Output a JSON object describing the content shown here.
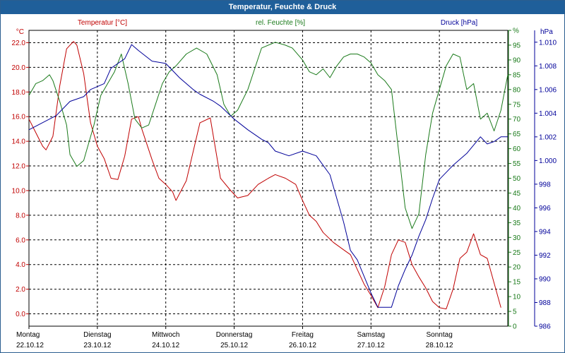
{
  "title": "Temperatur, Feuchte & Druck",
  "colors": {
    "temperature": "#c00000",
    "humidity": "#1a7a1a",
    "pressure": "#000099",
    "grid": "#000000",
    "titlebar": "#1f5f9a"
  },
  "chart_data": {
    "type": "line",
    "title": "Temperatur, Feuchte & Druck",
    "grid": true,
    "x_days": [
      {
        "day": "Montag",
        "date": "22.10.12"
      },
      {
        "day": "Dienstag",
        "date": "23.10.12"
      },
      {
        "day": "Mittwoch",
        "date": "24.10.12"
      },
      {
        "day": "Donnerstag",
        "date": "25.10.12"
      },
      {
        "day": "Freitag",
        "date": "26.10.12"
      },
      {
        "day": "Samstag",
        "date": "27.10.12"
      },
      {
        "day": "Sonntag",
        "date": "28.10.12"
      }
    ],
    "xlim": [
      0,
      7
    ],
    "axes": {
      "temperature": {
        "label": "Temperatur [°C]",
        "unit": "°C",
        "ylim": [
          -1,
          23
        ],
        "ticks": [
          "0.0",
          "2.0",
          "4.0",
          "6.0",
          "8.0",
          "10.0",
          "12.0",
          "14.0",
          "16.0",
          "18.0",
          "20.0",
          "22.0"
        ]
      },
      "humidity": {
        "label": "rel. Feuchte [%]",
        "unit": "%",
        "ylim": [
          0,
          100
        ],
        "ticks": [
          "0",
          "5",
          "10",
          "15",
          "20",
          "25",
          "30",
          "35",
          "40",
          "45",
          "50",
          "55",
          "60",
          "65",
          "70",
          "75",
          "80",
          "85",
          "90",
          "95",
          "%"
        ]
      },
      "pressure": {
        "label": "Druck [hPa]",
        "unit": "hPa",
        "ylim": [
          986,
          1011
        ],
        "ticks": [
          "986",
          "988",
          "990",
          "992",
          "994",
          "996",
          "998",
          "1.000",
          "1.002",
          "1.004",
          "1.006",
          "1.008",
          "1.010"
        ]
      }
    },
    "series": [
      {
        "name": "Temperatur [°C]",
        "axis": "temperature",
        "x": [
          0,
          0.1,
          0.2,
          0.25,
          0.35,
          0.45,
          0.55,
          0.65,
          0.7,
          0.8,
          0.85,
          0.9,
          1.0,
          1.1,
          1.2,
          1.3,
          1.4,
          1.5,
          1.6,
          1.65,
          1.8,
          1.9,
          2.0,
          2.1,
          2.15,
          2.3,
          2.5,
          2.65,
          2.8,
          2.95,
          3.05,
          3.2,
          3.35,
          3.5,
          3.6,
          3.75,
          3.9,
          4.0,
          4.1,
          4.2,
          4.3,
          4.45,
          4.6,
          4.7,
          4.8,
          4.9,
          5.0,
          5.1,
          5.2,
          5.3,
          5.4,
          5.5,
          5.6,
          5.7,
          5.8,
          5.9,
          6.0,
          6.1,
          6.2,
          6.3,
          6.4,
          6.5,
          6.6,
          6.7,
          6.8,
          6.9,
          7.0
        ],
        "values": [
          15.8,
          14.7,
          13.6,
          13.3,
          14.4,
          18.5,
          21.5,
          22.1,
          21.8,
          19.5,
          17.5,
          15.5,
          13.6,
          12.6,
          11.0,
          10.9,
          12.8,
          15.8,
          16.0,
          15.0,
          12.5,
          11.0,
          10.5,
          9.9,
          9.2,
          10.8,
          15.5,
          15.9,
          11.0,
          10.0,
          9.4,
          9.6,
          10.5,
          11.0,
          11.3,
          11.0,
          10.5,
          9.2,
          8.0,
          7.5,
          6.6,
          5.8,
          5.2,
          4.8,
          3.6,
          2.4,
          1.5,
          0.5,
          2.2,
          4.8,
          6.0,
          5.8,
          4.0,
          3.0,
          2.1,
          1.0,
          0.5,
          0.4,
          2.0,
          4.5,
          5.0,
          6.5,
          4.8,
          4.5,
          2.5,
          0.5,
          null
        ]
      },
      {
        "name": "rel. Feuchte [%]",
        "axis": "humidity",
        "x": [
          0,
          0.1,
          0.2,
          0.3,
          0.35,
          0.45,
          0.55,
          0.6,
          0.7,
          0.8,
          0.85,
          0.95,
          1.05,
          1.15,
          1.25,
          1.35,
          1.45,
          1.55,
          1.65,
          1.75,
          1.85,
          1.95,
          2.05,
          2.15,
          2.3,
          2.45,
          2.6,
          2.75,
          2.85,
          2.95,
          3.05,
          3.2,
          3.4,
          3.6,
          3.75,
          3.85,
          4.0,
          4.1,
          4.2,
          4.3,
          4.4,
          4.5,
          4.6,
          4.7,
          4.8,
          4.9,
          5.0,
          5.1,
          5.2,
          5.3,
          5.4,
          5.5,
          5.6,
          5.7,
          5.8,
          5.9,
          6.0,
          6.1,
          6.2,
          6.3,
          6.4,
          6.5,
          6.6,
          6.7,
          6.8,
          6.9,
          7.0
        ],
        "values": [
          78,
          82,
          83,
          85,
          83,
          76,
          68,
          58,
          54,
          56,
          60,
          68,
          78,
          82,
          86,
          92,
          82,
          70,
          67,
          68,
          75,
          82,
          86,
          88,
          92,
          94,
          92,
          85,
          75,
          71,
          73,
          80,
          94,
          96,
          95,
          94,
          90,
          86,
          85,
          87,
          84,
          88,
          91,
          92,
          92,
          91,
          89,
          85,
          83,
          80,
          60,
          40,
          33,
          38,
          58,
          72,
          80,
          88,
          92,
          91,
          80,
          82,
          70,
          72,
          66,
          73,
          85
        ]
      },
      {
        "name": "Druck [hPa]",
        "axis": "pressure",
        "x": [
          0,
          0.2,
          0.4,
          0.5,
          0.6,
          0.8,
          0.9,
          1.1,
          1.2,
          1.4,
          1.5,
          1.6,
          1.8,
          2.0,
          2.2,
          2.4,
          2.5,
          2.7,
          2.8,
          3.0,
          3.2,
          3.4,
          3.5,
          3.6,
          3.8,
          4.0,
          4.2,
          4.4,
          4.6,
          4.7,
          4.8,
          5.0,
          5.1,
          5.3,
          5.4,
          5.5,
          5.6,
          5.7,
          5.8,
          5.9,
          6.0,
          6.2,
          6.4,
          6.6,
          6.7,
          6.8,
          6.9,
          7.0
        ],
        "values": [
          1002.6,
          1003.2,
          1003.8,
          1004.4,
          1005.0,
          1005.4,
          1006.0,
          1006.5,
          1007.8,
          1008.6,
          1009.8,
          1009.3,
          1008.4,
          1008.2,
          1007.0,
          1006.0,
          1005.6,
          1005.0,
          1004.6,
          1003.5,
          1002.6,
          1001.8,
          1001.5,
          1000.8,
          1000.4,
          1000.8,
          1000.4,
          998.8,
          994.8,
          992.4,
          991.6,
          988.8,
          987.6,
          987.6,
          989.4,
          990.8,
          992.0,
          993.6,
          995.0,
          996.8,
          998.4,
          999.6,
          1000.6,
          1002.0,
          1001.4,
          1001.6,
          1002.0,
          1002.0
        ]
      }
    ]
  }
}
